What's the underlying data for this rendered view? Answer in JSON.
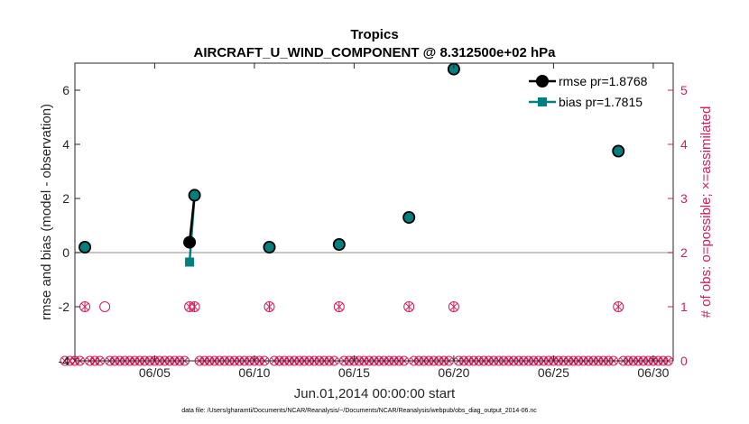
{
  "chart_data": {
    "type": "line",
    "title": "Tropics",
    "subtitle": "AIRCRAFT_U_WIND_COMPONENT @ 8.312500e+02 hPa",
    "xlabel": "Jun.01,2014 00:00:00 start",
    "ylabel": "rmse and bias (model - observation)",
    "y2label": "# of obs: o=possible; ×=assimilated",
    "footer": "data file: /Users/gharamti/Documents/NCAR/Reanalysis/~/Documents/NCAR/Reanalysis/webpub/obs_diag_output_2014-06.nc",
    "xlim": [
      1.0,
      31.0
    ],
    "ylim": [
      -4,
      7
    ],
    "y2lim": [
      0,
      5.5
    ],
    "x_ticks": [
      5,
      10,
      15,
      20,
      25,
      30
    ],
    "x_tick_labels": [
      "06/05",
      "06/10",
      "06/15",
      "06/20",
      "06/25",
      "06/30"
    ],
    "y_ticks": [
      -4,
      -2,
      0,
      2,
      4,
      6
    ],
    "y_tick_labels": [
      "-4",
      "-2",
      "0",
      "2",
      "4",
      "6"
    ],
    "y2_ticks": [
      0,
      1,
      2,
      3,
      4,
      5
    ],
    "y2_tick_labels": [
      "0",
      "1",
      "2",
      "3",
      "4",
      "5"
    ],
    "legend": [
      "rmse pr=1.8768",
      "bias pr=1.7815"
    ],
    "legend_position": "top-right",
    "colors": {
      "rmse": "#000000",
      "bias": "#008080",
      "obs": "#d41c5c",
      "zero_line": "#b3b3b3"
    },
    "series": [
      {
        "name": "rmse pr=1.8768",
        "points": [
          [
            1.5,
            0.2
          ],
          [
            6.75,
            0.38
          ],
          [
            7.0,
            2.12
          ],
          [
            10.75,
            0.2
          ],
          [
            14.25,
            0.3
          ],
          [
            17.75,
            1.3
          ],
          [
            20.0,
            6.78
          ],
          [
            28.25,
            3.75
          ]
        ],
        "segments": [
          [
            1,
            2
          ]
        ]
      },
      {
        "name": "bias pr=1.7815",
        "points": [
          [
            1.5,
            0.2
          ],
          [
            6.75,
            -0.35
          ],
          [
            7.0,
            2.12
          ],
          [
            10.75,
            0.2
          ],
          [
            14.25,
            0.3
          ],
          [
            17.75,
            1.3
          ],
          [
            20.0,
            6.78
          ],
          [
            28.25,
            3.75
          ]
        ],
        "segments": [
          [
            1,
            2
          ]
        ]
      }
    ],
    "obs_possible_one": [
      1.5,
      2.5,
      6.75,
      7.0,
      10.75,
      14.25,
      17.75,
      20.0,
      28.25
    ],
    "obs_assimilated_one": [
      1.5,
      6.75,
      7.0,
      10.75,
      14.25,
      17.75,
      20.0,
      28.25
    ],
    "obs_time_start": 0.5,
    "obs_time_step": 0.25,
    "obs_time_count": 122
  }
}
